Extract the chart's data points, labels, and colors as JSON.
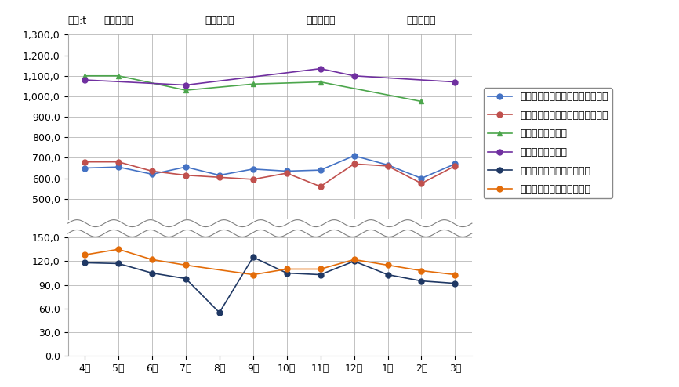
{
  "months": [
    "4月",
    "5月",
    "6月",
    "7月",
    "8月",
    "9月",
    "10月",
    "11月",
    "12月",
    "1月",
    "2月",
    "3月"
  ],
  "quarter_labels": [
    "第１四半期",
    "第２四半期",
    "第３四半期",
    "第４四半期"
  ],
  "unit_label": "単位:t",
  "series_upper": [
    {
      "label": "３年度　ステーション・拠点回収",
      "color": "#4472C4",
      "marker": "o",
      "values": [
        650,
        655,
        620,
        655,
        615,
        645,
        635,
        640,
        710,
        665,
        600,
        670
      ]
    },
    {
      "label": "２年度　ステーション・拠点回収",
      "color": "#C0504D",
      "marker": "o",
      "values": [
        680,
        680,
        635,
        615,
        605,
        595,
        625,
        560,
        670,
        660,
        575,
        660
      ]
    },
    {
      "label": "３年度　集団回収",
      "color": "#4CA64C",
      "marker": "^",
      "values": [
        1100,
        1100,
        null,
        1030,
        null,
        1060,
        null,
        1070,
        null,
        null,
        975,
        null
      ]
    },
    {
      "label": "２年度　集団回収",
      "color": "#7030A0",
      "marker": "o",
      "values": [
        1080,
        null,
        null,
        1055,
        null,
        null,
        null,
        1135,
        1100,
        null,
        null,
        1070
      ]
    }
  ],
  "series_lower": [
    {
      "label": "３年度　ピックアップ回収",
      "color": "#1F3864",
      "marker": "o",
      "values": [
        118,
        117,
        105,
        98,
        55,
        125,
        105,
        103,
        120,
        103,
        95,
        92
      ]
    },
    {
      "label": "２年度　ピックアップ回収",
      "color": "#E36C09",
      "marker": "o",
      "values": [
        128,
        135,
        122,
        115,
        null,
        103,
        110,
        110,
        122,
        115,
        108,
        103
      ]
    }
  ],
  "upper_ylim": [
    400,
    1300
  ],
  "upper_yticks": [
    500,
    600,
    700,
    800,
    900,
    1000,
    1100,
    1200,
    1300
  ],
  "lower_ylim": [
    0,
    150
  ],
  "lower_yticks": [
    0,
    30,
    60,
    90,
    120,
    150
  ],
  "bg_color": "#FFFFFF",
  "grid_color": "#AAAAAA",
  "font_size": 9
}
